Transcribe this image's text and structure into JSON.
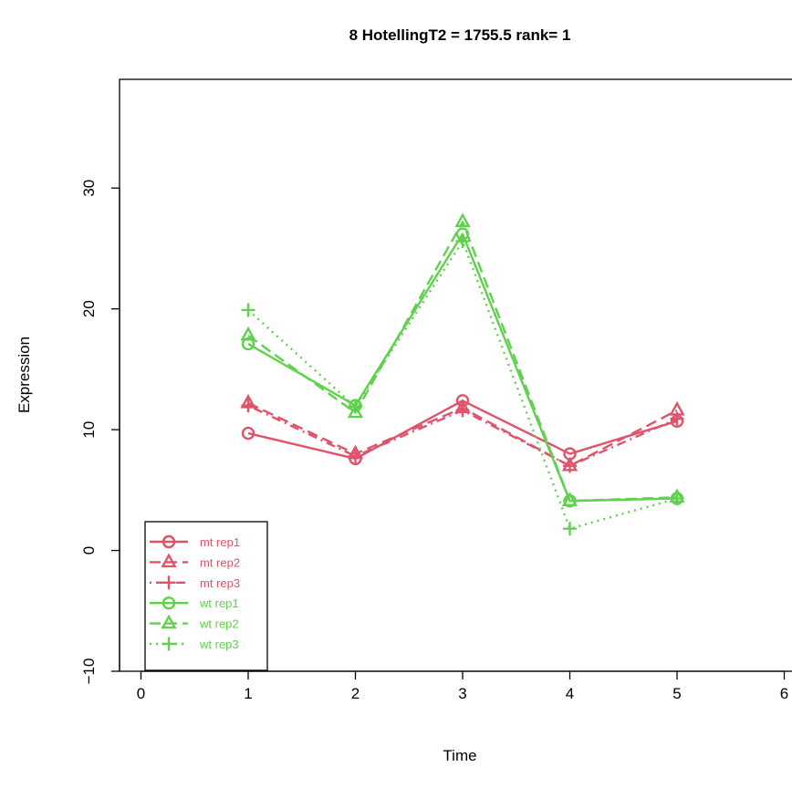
{
  "chart_data": {
    "type": "line",
    "title": "8  HotellingT2 = 1755.5  rank= 1",
    "xlabel": "Time",
    "ylabel": "Expression",
    "xlim": [
      -0.2,
      6.2
    ],
    "ylim": [
      -10,
      39
    ],
    "x_ticks": [
      0,
      1,
      2,
      3,
      4,
      5,
      6
    ],
    "y_ticks": [
      -10,
      0,
      10,
      20,
      30
    ],
    "grid": false,
    "legend_position": "bottom-left",
    "x": [
      1,
      2,
      3,
      4,
      5
    ],
    "series": [
      {
        "name": "mt rep1",
        "color": "#DF536B",
        "marker": "circle",
        "dash": "solid",
        "values": [
          9.7,
          7.6,
          12.4,
          8.0,
          10.7
        ]
      },
      {
        "name": "mt rep2",
        "color": "#DF536B",
        "marker": "triangle",
        "dash": "dashed",
        "values": [
          12.2,
          8.0,
          11.8,
          7.0,
          11.6
        ]
      },
      {
        "name": "mt rep3",
        "color": "#DF536B",
        "marker": "plus",
        "dash": "dotdash",
        "values": [
          12.0,
          7.8,
          11.6,
          7.0,
          10.9
        ]
      },
      {
        "name": "wt rep1",
        "color": "#61D04F",
        "marker": "circle",
        "dash": "solid",
        "values": [
          17.1,
          12.0,
          26.2,
          4.1,
          4.3
        ]
      },
      {
        "name": "wt rep2",
        "color": "#61D04F",
        "marker": "triangle",
        "dash": "dashed",
        "values": [
          17.8,
          11.4,
          27.2,
          4.1,
          4.4
        ]
      },
      {
        "name": "wt rep3",
        "color": "#61D04F",
        "marker": "plus",
        "dash": "dotted",
        "values": [
          19.9,
          11.9,
          25.6,
          1.8,
          4.3
        ]
      }
    ]
  }
}
